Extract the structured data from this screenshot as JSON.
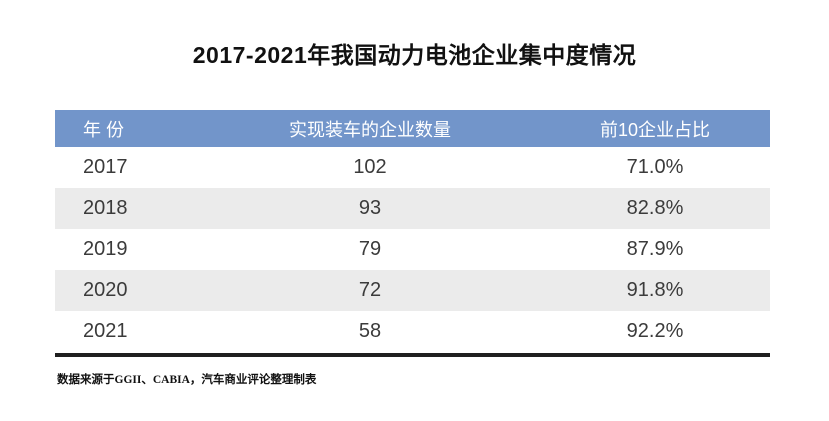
{
  "title": "2017-2021年我国动力电池企业集中度情况",
  "table": {
    "columns": [
      "年 份",
      "实现装车的企业数量",
      "前10企业占比"
    ],
    "rows": [
      {
        "year": "2017",
        "count": "102",
        "share": "71.0%"
      },
      {
        "year": "2018",
        "count": "93",
        "share": "82.8%"
      },
      {
        "year": "2019",
        "count": "79",
        "share": "87.9%"
      },
      {
        "year": "2020",
        "count": "72",
        "share": "91.8%"
      },
      {
        "year": "2021",
        "count": "58",
        "share": "92.2%"
      }
    ]
  },
  "source_note": "数据来源于GGII、CABIA，汽车商业评论整理制表",
  "colors": {
    "header_bg": "#7295ca",
    "header_text": "#ffffff",
    "row_alt_bg": "#ebebeb",
    "divider": "#1f1f1f"
  },
  "chart_data": {
    "type": "table",
    "title": "2017-2021年我国动力电池企业集中度情况",
    "columns": [
      "年 份",
      "实现装车的企业数量",
      "前10企业占比"
    ],
    "years": [
      2017,
      2018,
      2019,
      2020,
      2021
    ],
    "companies_with_installed_vehicles": [
      102,
      93,
      79,
      72,
      58
    ],
    "top10_share_percent": [
      71.0,
      82.8,
      87.9,
      91.8,
      92.2
    ],
    "source": "数据来源于GGII、CABIA，汽车商业评论整理制表",
    "layout": {
      "header_position": "top",
      "zebra_striping": true,
      "grid": false
    }
  }
}
